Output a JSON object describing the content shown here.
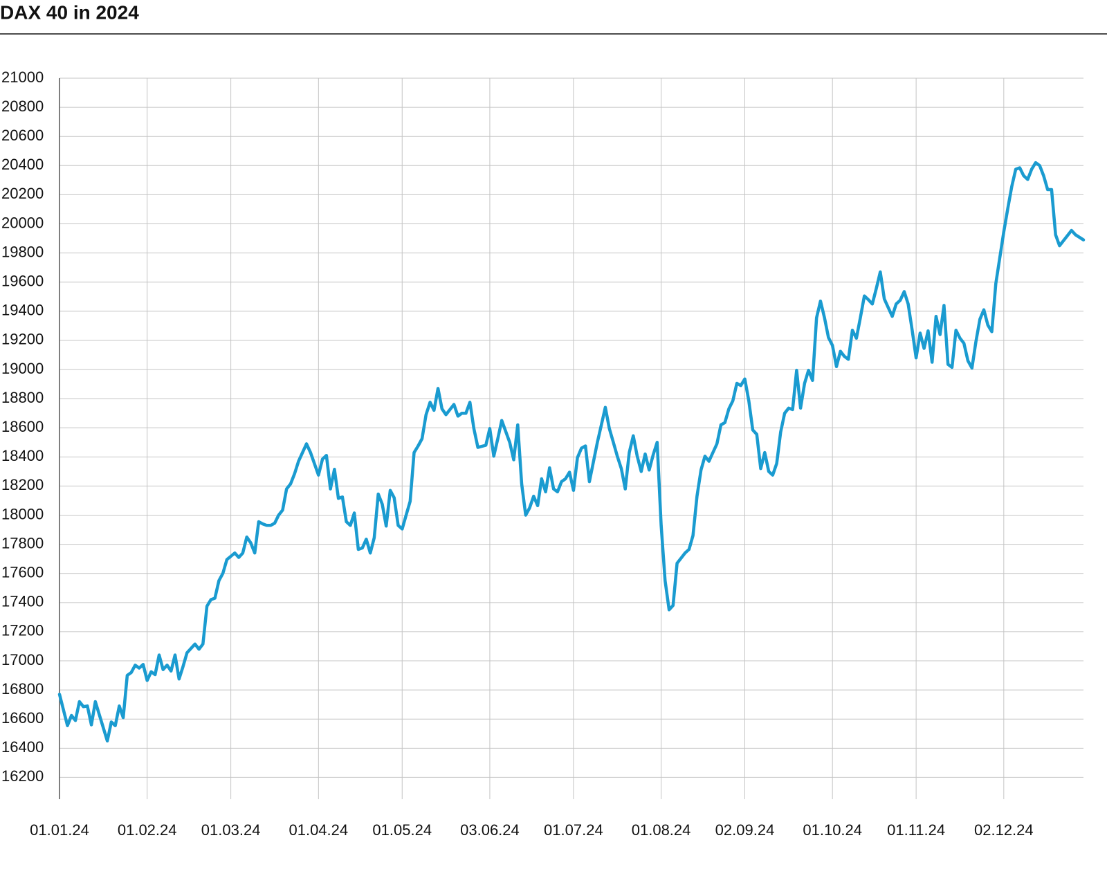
{
  "chart_data": {
    "type": "line",
    "title": "DAX 40 in 2024",
    "color": "#1a9bd0",
    "grid": true,
    "xlim": [
      0,
      257
    ],
    "ylim": [
      16050,
      21000
    ],
    "xticks": [
      {
        "value": 0,
        "label": "01.01.24"
      },
      {
        "value": 22,
        "label": "01.02.24"
      },
      {
        "value": 43,
        "label": "01.03.24"
      },
      {
        "value": 65,
        "label": "01.04.24"
      },
      {
        "value": 86,
        "label": "01.05.24"
      },
      {
        "value": 108,
        "label": "03.06.24"
      },
      {
        "value": 129,
        "label": "01.07.24"
      },
      {
        "value": 151,
        "label": "01.08.24"
      },
      {
        "value": 172,
        "label": "02.09.24"
      },
      {
        "value": 194,
        "label": "01.10.24"
      },
      {
        "value": 215,
        "label": "01.11.24"
      },
      {
        "value": 237,
        "label": "02.12.24"
      }
    ],
    "yticks": [
      16200,
      16400,
      16600,
      16800,
      17000,
      17200,
      17400,
      17600,
      17800,
      18000,
      18200,
      18400,
      18600,
      18800,
      19000,
      19200,
      19400,
      19600,
      19800,
      20000,
      20200,
      20400,
      20600,
      20800,
      21000
    ],
    "x": [
      0,
      2,
      3,
      4,
      5,
      6,
      7,
      8,
      9,
      12,
      13,
      14,
      15,
      16,
      17,
      18,
      19,
      20,
      21,
      22,
      23,
      24,
      25,
      26,
      27,
      28,
      29,
      30,
      31,
      32,
      34,
      35,
      36,
      37,
      38,
      39,
      40,
      41,
      42,
      44,
      45,
      46,
      47,
      48,
      49,
      50,
      51,
      52,
      53,
      54,
      55,
      56,
      57,
      58,
      59,
      60,
      62,
      63,
      65,
      66,
      67,
      68,
      69,
      70,
      71,
      72,
      73,
      74,
      75,
      76,
      77,
      78,
      79,
      80,
      81,
      82,
      83,
      84,
      85,
      86,
      87,
      88,
      89,
      90,
      91,
      92,
      93,
      94,
      95,
      96,
      97,
      99,
      100,
      101,
      102,
      103,
      104,
      105,
      107,
      108,
      109,
      110,
      111,
      113,
      114,
      115,
      116,
      117,
      118,
      119,
      120,
      121,
      122,
      123,
      124,
      125,
      126,
      127,
      128,
      129,
      130,
      131,
      132,
      133,
      135,
      136,
      137,
      138,
      139,
      140,
      141,
      142,
      143,
      144,
      145,
      146,
      147,
      148,
      149,
      150,
      151,
      152,
      153,
      154,
      155,
      156,
      157,
      158,
      159,
      160,
      161,
      162,
      163,
      164,
      165,
      166,
      167,
      168,
      169,
      170,
      171,
      172,
      173,
      174,
      175,
      176,
      177,
      178,
      179,
      180,
      181,
      182,
      183,
      184,
      185,
      186,
      187,
      188,
      189,
      190,
      191,
      192,
      193,
      194,
      195,
      196,
      197,
      198,
      199,
      200,
      201,
      202,
      203,
      204,
      205,
      206,
      207,
      208,
      209,
      210,
      211,
      212,
      213,
      214,
      215,
      216,
      217,
      218,
      219,
      220,
      221,
      222,
      223,
      224,
      225,
      226,
      227,
      228,
      229,
      230,
      231,
      232,
      233,
      234,
      235,
      237,
      238,
      239,
      240,
      241,
      242,
      243,
      244,
      245,
      246,
      247,
      248,
      249,
      250,
      251,
      254,
      255,
      257
    ],
    "values": [
      16770,
      16555,
      16625,
      16590,
      16720,
      16685,
      16690,
      16560,
      16720,
      16450,
      16580,
      16555,
      16690,
      16610,
      16900,
      16920,
      16970,
      16950,
      16975,
      16865,
      16925,
      16905,
      17040,
      16940,
      16970,
      16930,
      17040,
      16875,
      16960,
      17055,
      17115,
      17080,
      17115,
      17375,
      17420,
      17430,
      17550,
      17600,
      17695,
      17740,
      17710,
      17740,
      17850,
      17810,
      17740,
      17955,
      17940,
      17930,
      17930,
      17945,
      18000,
      18035,
      18180,
      18215,
      18285,
      18370,
      18490,
      18430,
      18275,
      18385,
      18410,
      18180,
      18315,
      18115,
      18125,
      17955,
      17930,
      18015,
      17765,
      17775,
      17835,
      17740,
      17845,
      18145,
      18075,
      17925,
      18170,
      18120,
      17930,
      17905,
      18000,
      18095,
      18430,
      18475,
      18525,
      18690,
      18775,
      18720,
      18870,
      18730,
      18690,
      18760,
      18680,
      18700,
      18700,
      18775,
      18595,
      18465,
      18480,
      18595,
      18405,
      18525,
      18650,
      18500,
      18380,
      18620,
      18215,
      18000,
      18050,
      18130,
      18065,
      18250,
      18160,
      18325,
      18180,
      18160,
      18230,
      18250,
      18295,
      18170,
      18395,
      18460,
      18475,
      18230,
      18500,
      18620,
      18740,
      18595,
      18500,
      18405,
      18320,
      18180,
      18430,
      18545,
      18405,
      18300,
      18420,
      18310,
      18415,
      18500,
      17930,
      17550,
      17350,
      17380,
      17670,
      17705,
      17740,
      17765,
      17860,
      18130,
      18310,
      18405,
      18370,
      18430,
      18490,
      18620,
      18635,
      18730,
      18785,
      18905,
      18890,
      18935,
      18785,
      18585,
      18555,
      18320,
      18430,
      18300,
      18275,
      18355,
      18570,
      18700,
      18735,
      18725,
      18995,
      18735,
      18905,
      18995,
      18925,
      19355,
      19470,
      19355,
      19220,
      19165,
      19020,
      19125,
      19090,
      19070,
      19270,
      19215,
      19355,
      19505,
      19480,
      19450,
      19555,
      19670,
      19485,
      19425,
      19365,
      19450,
      19475,
      19535,
      19450,
      19270,
      19080,
      19250,
      19145,
      19265,
      19050,
      19365,
      19240,
      19440,
      19035,
      19015,
      19270,
      19215,
      19180,
      19060,
      19010,
      19190,
      19345,
      19410,
      19305,
      19260,
      19590,
      19945,
      20105,
      20255,
      20375,
      20385,
      20330,
      20305,
      20375,
      20420,
      20400,
      20330,
      20235,
      20235,
      19925,
      19850,
      19955,
      19925,
      19890
    ]
  }
}
